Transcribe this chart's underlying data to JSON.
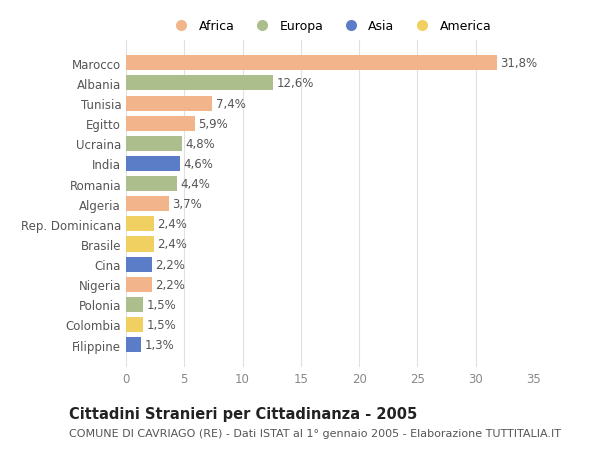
{
  "countries": [
    "Marocco",
    "Albania",
    "Tunisia",
    "Egitto",
    "Ucraina",
    "India",
    "Romania",
    "Algeria",
    "Rep. Dominicana",
    "Brasile",
    "Cina",
    "Nigeria",
    "Polonia",
    "Colombia",
    "Filippine"
  ],
  "values": [
    31.8,
    12.6,
    7.4,
    5.9,
    4.8,
    4.6,
    4.4,
    3.7,
    2.4,
    2.4,
    2.2,
    2.2,
    1.5,
    1.5,
    1.3
  ],
  "labels": [
    "31,8%",
    "12,6%",
    "7,4%",
    "5,9%",
    "4,8%",
    "4,6%",
    "4,4%",
    "3,7%",
    "2,4%",
    "2,4%",
    "2,2%",
    "2,2%",
    "1,5%",
    "1,5%",
    "1,3%"
  ],
  "continents": [
    "Africa",
    "Europa",
    "Africa",
    "Africa",
    "Europa",
    "Asia",
    "Europa",
    "Africa",
    "America",
    "America",
    "Asia",
    "Africa",
    "Europa",
    "America",
    "Asia"
  ],
  "continent_colors": {
    "Africa": "#F2B48A",
    "Europa": "#ABBE8C",
    "Asia": "#5B7DC8",
    "America": "#F0D060"
  },
  "legend_order": [
    "Africa",
    "Europa",
    "Asia",
    "America"
  ],
  "title": "Cittadini Stranieri per Cittadinanza - 2005",
  "subtitle": "COMUNE DI CAVRIAGO (RE) - Dati ISTAT al 1° gennaio 2005 - Elaborazione TUTTITALIA.IT",
  "xlim": [
    0,
    35
  ],
  "xticks": [
    0,
    5,
    10,
    15,
    20,
    25,
    30,
    35
  ],
  "background_color": "#ffffff",
  "grid_color": "#e0e0e0",
  "bar_height": 0.75,
  "label_fontsize": 8.5,
  "tick_fontsize": 8.5,
  "title_fontsize": 10.5,
  "subtitle_fontsize": 8
}
